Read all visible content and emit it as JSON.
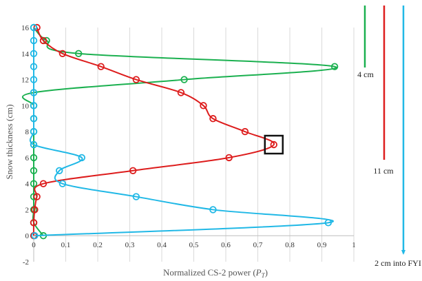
{
  "chart_data": {
    "type": "line",
    "title": "",
    "xlabel": "Normalized CS-2 power (",
    "xlabel_var": "P",
    "xlabel_sub": "T",
    "xlabel_close": ")",
    "ylabel": "Snow thickness (cm)",
    "xlim": [
      0,
      1
    ],
    "ylim": [
      -2,
      16
    ],
    "xticks": [
      0,
      0.1,
      0.2,
      0.3,
      0.4,
      0.5,
      0.6,
      0.7,
      0.8,
      0.9,
      1
    ],
    "xtick_labels": [
      "0",
      "0.1",
      "0.2",
      "0.3",
      "0.4",
      "0.5",
      "0.6",
      "0.7",
      "0.8",
      "0.9",
      "1"
    ],
    "yticks": [
      -2,
      0,
      2,
      4,
      6,
      8,
      10,
      12,
      14,
      16
    ],
    "ytick_labels": [
      "-2",
      "0",
      "2",
      "4",
      "6",
      "8",
      "10",
      "12",
      "14",
      "16"
    ],
    "grid": "vertical",
    "series": [
      {
        "name": "4 cm",
        "color": "#1ab04f",
        "points": [
          [
            0.03,
            0
          ],
          [
            0,
            1
          ],
          [
            0,
            2
          ],
          [
            0,
            3
          ],
          [
            0,
            4
          ],
          [
            0,
            5
          ],
          [
            0,
            6
          ],
          [
            0,
            7
          ],
          [
            0,
            8
          ],
          [
            0,
            9
          ],
          [
            0,
            10
          ],
          [
            0,
            11
          ],
          [
            0.47,
            12
          ],
          [
            0.94,
            13
          ],
          [
            0.14,
            14
          ],
          [
            0.04,
            15
          ],
          [
            0,
            16
          ]
        ]
      },
      {
        "name": "11 cm",
        "color": "#dd1c1c",
        "points": [
          [
            0,
            0
          ],
          [
            0,
            1
          ],
          [
            0.003,
            2
          ],
          [
            0.01,
            3
          ],
          [
            0.03,
            4
          ],
          [
            0.31,
            5
          ],
          [
            0.61,
            6
          ],
          [
            0.75,
            7
          ],
          [
            0.66,
            8
          ],
          [
            0.56,
            9
          ],
          [
            0.53,
            10
          ],
          [
            0.46,
            11
          ],
          [
            0.32,
            12
          ],
          [
            0.21,
            13
          ],
          [
            0.09,
            14
          ],
          [
            0.03,
            15
          ],
          [
            0.01,
            16
          ]
        ]
      },
      {
        "name": "2 cm into FYI",
        "color": "#20b8e6",
        "points": [
          [
            0.003,
            0
          ],
          [
            0.92,
            1
          ],
          [
            0.56,
            2
          ],
          [
            0.32,
            3
          ],
          [
            0.09,
            4
          ],
          [
            0.08,
            5
          ],
          [
            0.15,
            6
          ],
          [
            0,
            7
          ],
          [
            0,
            8
          ],
          [
            0,
            9
          ],
          [
            0,
            10
          ],
          [
            0,
            11
          ],
          [
            0,
            12
          ],
          [
            0,
            13
          ],
          [
            0,
            14
          ],
          [
            0,
            15
          ],
          [
            0,
            16
          ]
        ]
      }
    ],
    "highlight_point": {
      "series": "11 cm",
      "x": 0.75,
      "y": 7,
      "color": "#111111"
    }
  }
}
